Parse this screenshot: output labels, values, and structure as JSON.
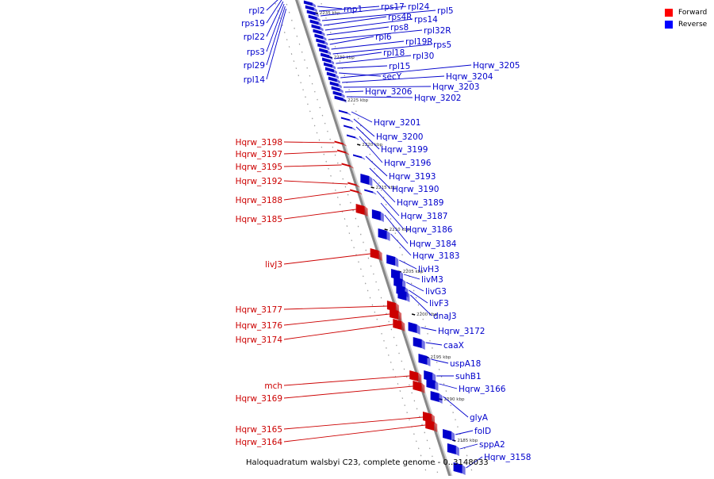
{
  "legend": {
    "forward_label": "Forward",
    "reverse_label": "Reverse",
    "forward_color": "#ff0000",
    "reverse_color": "#0000ff"
  },
  "caption": "Haloquadratum walsbyi C23, complete genome - 0..3148033",
  "colors": {
    "forward": "#cc0000",
    "reverse": "#0000cc",
    "backbone": "#888888"
  },
  "ticks": [
    "2235 kbp",
    "2230 kbp",
    "2225 kbp",
    "2220 kbp",
    "2215 kbp",
    "2210 kbp",
    "2205 kbp",
    "2200 kbp",
    "2195 kbp",
    "2190 kbp",
    "2185 kbp"
  ],
  "forward_genes": [
    "Hqrw_3198",
    "Hqrw_3197",
    "Hqrw_3195",
    "Hqrw_3192",
    "Hqrw_3188",
    "Hqrw_3185",
    "livJ3",
    "Hqrw_3177",
    "Hqrw_3176",
    "Hqrw_3174",
    "mch",
    "Hqrw_3169",
    "Hqrw_3165",
    "Hqrw_3164"
  ],
  "reverse_genes_left": [
    "rpl2",
    "rps19",
    "rpl22",
    "rps3",
    "rpl29",
    "rpl14"
  ],
  "reverse_genes_right": [
    "rnp1",
    "rps17",
    "rpl24",
    "rpl5",
    "rps4R",
    "rps14",
    "rps8",
    "rpl32R",
    "rpl6",
    "rpl19R",
    "rps5",
    "rpl18",
    "rpl30",
    "rpl15",
    "secY",
    "Hqrw_3205",
    "Hqrw_3204",
    "Hqrw_3203",
    "Hqrw_3206",
    "Hqrw_3202",
    "Hqrw_3201",
    "Hqrw_3200",
    "Hqrw_3199",
    "Hqrw_3196",
    "Hqrw_3193",
    "Hqrw_3190",
    "Hqrw_3189",
    "Hqrw_3187",
    "Hqrw_3186",
    "Hqrw_3184",
    "Hqrw_3183",
    "livH3",
    "livM3",
    "livG3",
    "livF3",
    "dnaJ3",
    "Hqrw_3172",
    "caaX",
    "uspA18",
    "suhB1",
    "Hqrw_3166",
    "glyA",
    "folD",
    "sppA2",
    "Hqrw_3158"
  ]
}
